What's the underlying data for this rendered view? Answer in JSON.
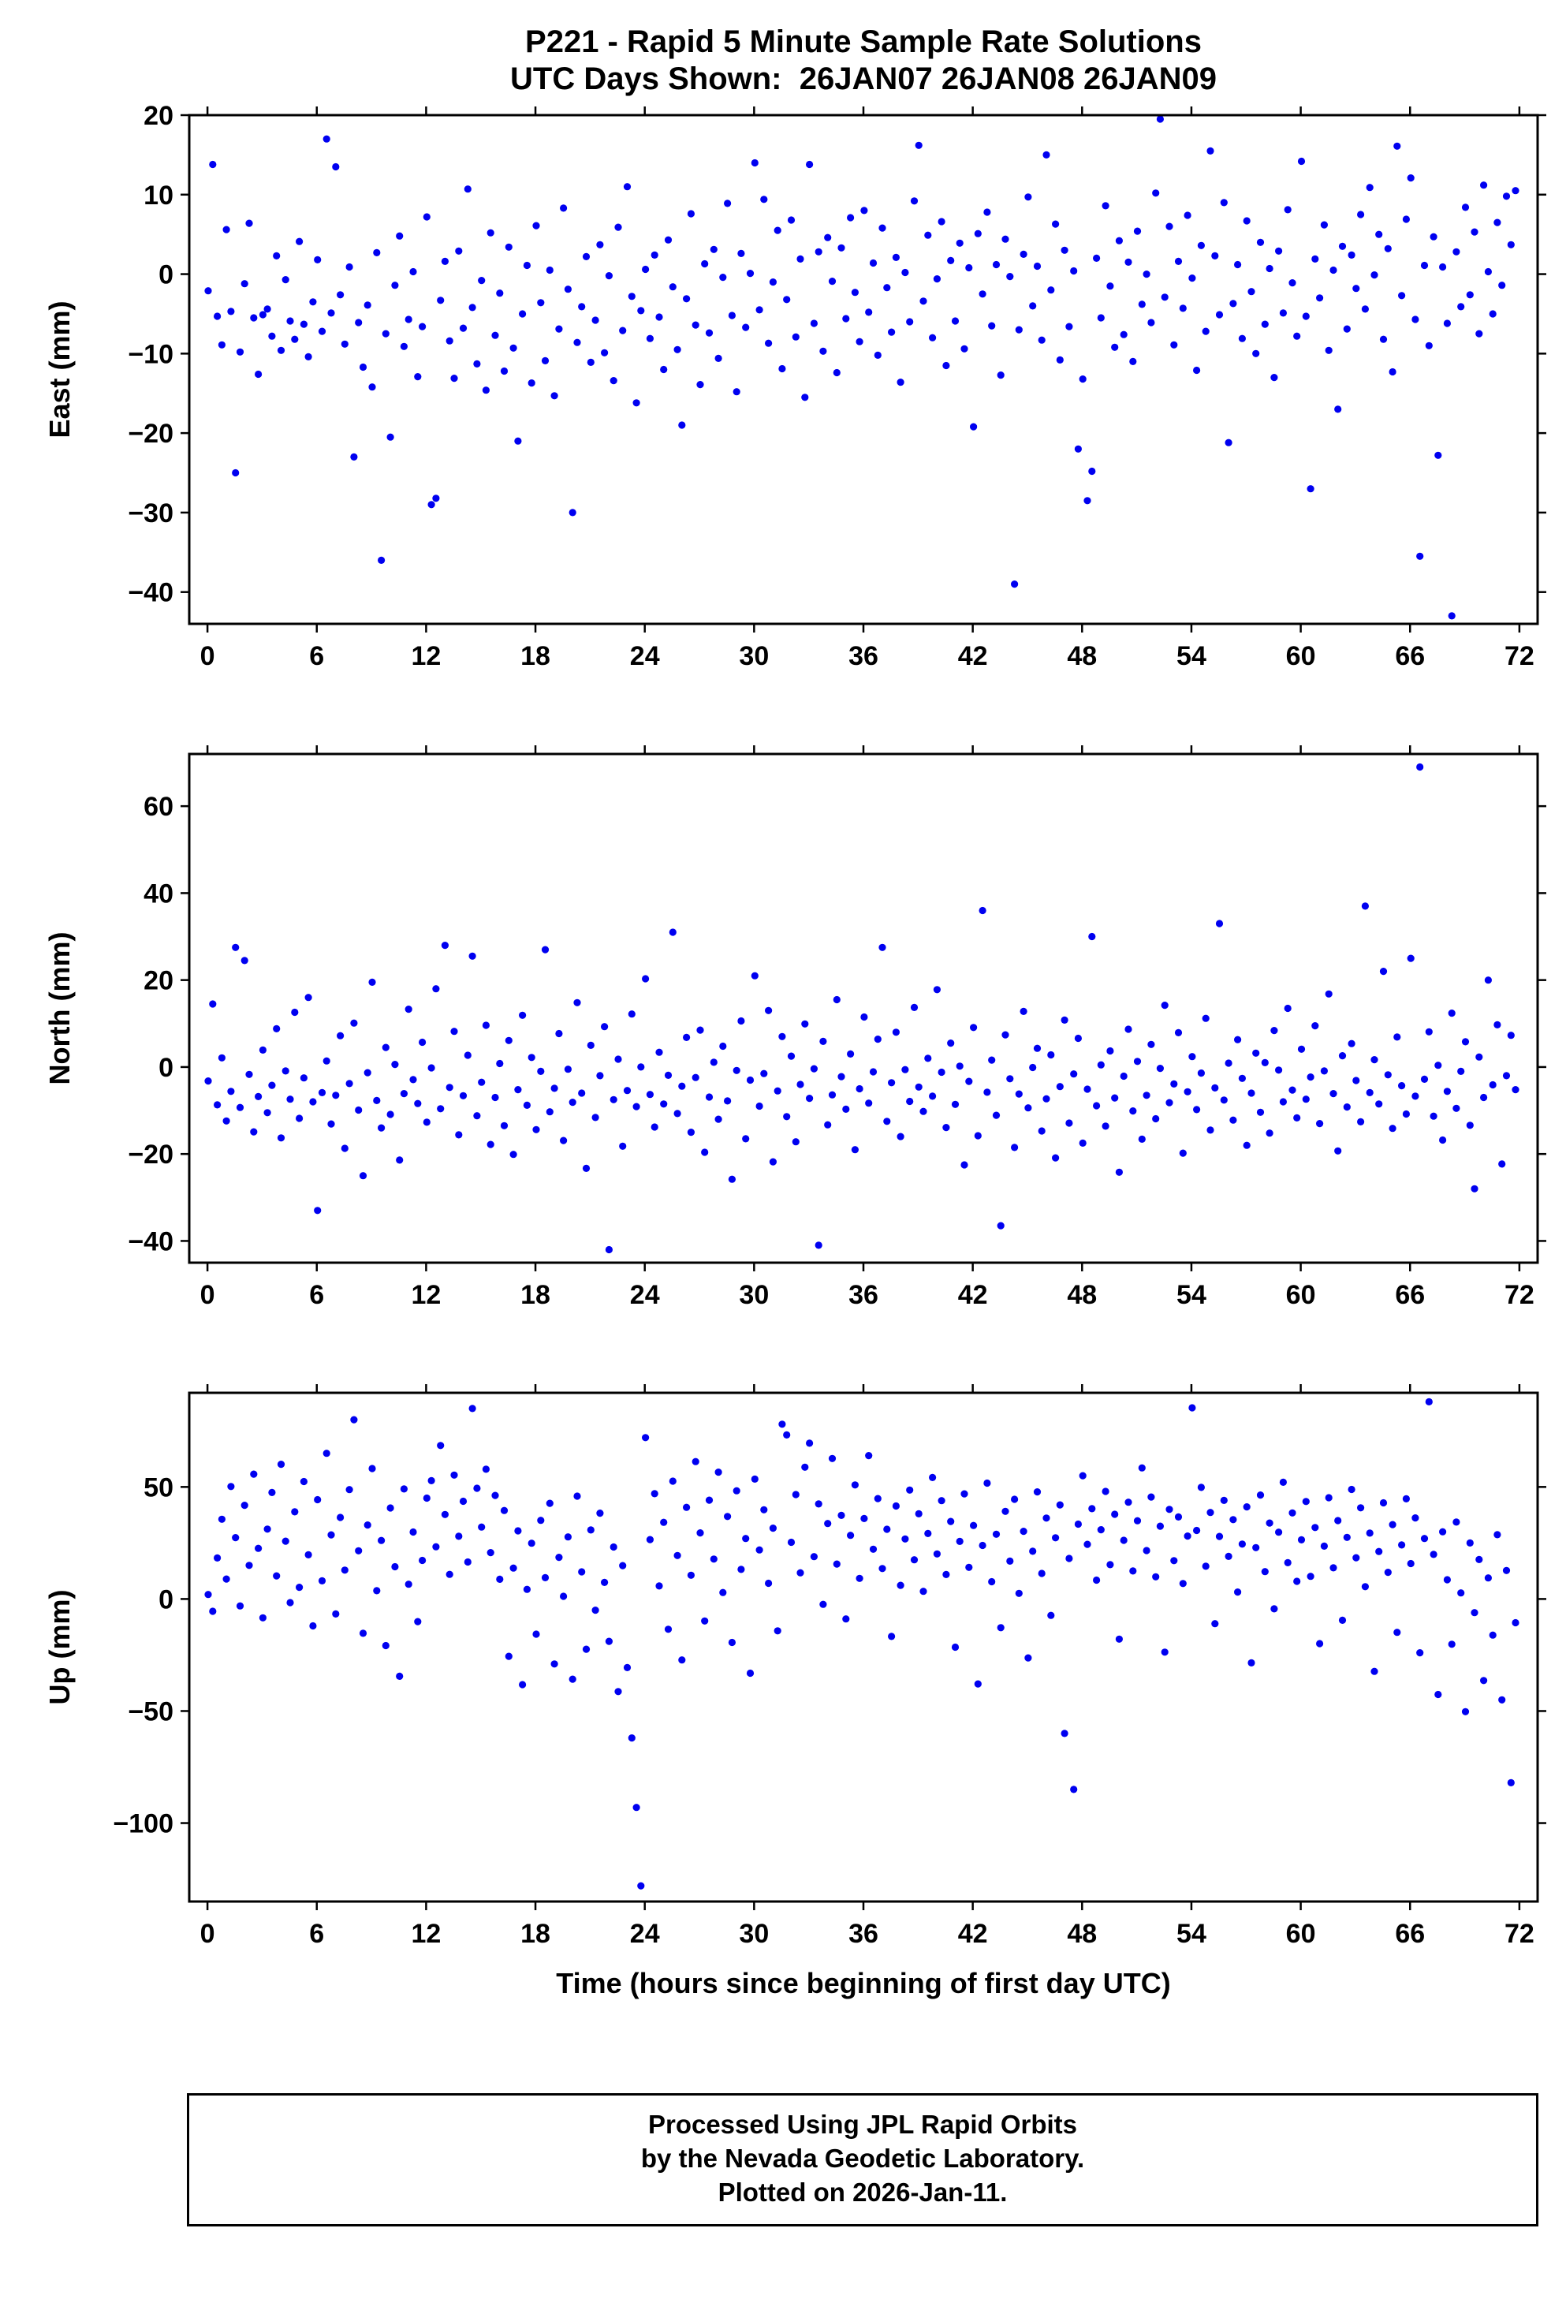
{
  "title": {
    "line1": "P221 - Rapid 5 Minute Sample Rate Solutions",
    "line2": "UTC Days Shown:  26JAN07 26JAN08 26JAN09"
  },
  "footer": {
    "line1": "Processed Using JPL Rapid Orbits",
    "line2": "by the Nevada Geodetic Laboratory.",
    "line3": "Plotted on 2026-Jan-11."
  },
  "colors": {
    "point": "#0000f0",
    "axis": "#000000",
    "background": "#ffffff"
  },
  "chart_data": [
    {
      "type": "scatter",
      "series_name": "East",
      "ylabel": "East (mm)",
      "xlim": [
        -1,
        73
      ],
      "ylim": [
        -44,
        20
      ],
      "xticks": [
        0,
        6,
        12,
        18,
        24,
        30,
        36,
        42,
        48,
        54,
        60,
        66,
        72
      ],
      "yticks": [
        -40,
        -30,
        -20,
        -10,
        0,
        10,
        20
      ],
      "x_start": 0.04,
      "x_step": 0.25,
      "n": 288,
      "y": [
        -2.1,
        13.8,
        -5.3,
        -8.9,
        5.6,
        -4.7,
        -25,
        -9.8,
        -1.2,
        6.4,
        -5.5,
        -12.6,
        -5.1,
        -4.4,
        -7.8,
        2.3,
        -9.6,
        -0.7,
        -5.9,
        -8.2,
        4.1,
        -6.3,
        -10.4,
        -3.5,
        1.8,
        -7.2,
        17,
        -4.9,
        13.5,
        -2.6,
        -8.8,
        0.9,
        -23,
        -6.1,
        -11.7,
        -3.9,
        -14.2,
        2.7,
        -36,
        -7.5,
        -20.5,
        -1.4,
        4.8,
        -9.1,
        -5.7,
        0.3,
        -12.9,
        -6.6,
        7.2,
        -29,
        -28.2,
        -3.3,
        1.6,
        -8.4,
        -13.1,
        2.9,
        -6.8,
        10.7,
        -4.2,
        -11.3,
        -0.8,
        -14.6,
        5.2,
        -7.7,
        -2.4,
        -12.2,
        3.4,
        -9.3,
        -21,
        -5,
        1.1,
        -13.7,
        6.1,
        -3.6,
        -10.9,
        0.5,
        -15.3,
        -6.9,
        8.3,
        -1.9,
        -30,
        -8.6,
        -4.1,
        2.2,
        -11.1,
        -5.8,
        3.7,
        -9.9,
        -0.2,
        -13.4,
        5.9,
        -7.1,
        11,
        -2.8,
        -16.2,
        -4.6,
        0.6,
        -8.1,
        2.4,
        -5.4,
        -12,
        4.3,
        -1.6,
        -9.5,
        -19,
        -3.1,
        7.6,
        -6.4,
        -13.9,
        1.3,
        -7.4,
        3.1,
        -10.6,
        -0.4,
        8.9,
        -5.2,
        -14.8,
        2.6,
        -6.7,
        0.1,
        14,
        -4.5,
        9.4,
        -8.7,
        -1,
        5.5,
        -11.9,
        -3.2,
        6.8,
        -7.9,
        1.9,
        -15.5,
        13.8,
        -6.2,
        2.8,
        -9.7,
        4.6,
        -0.9,
        -12.4,
        3.3,
        -5.6,
        7.1,
        -2.3,
        -8.5,
        8,
        -4.8,
        1.4,
        -10.2,
        5.8,
        -1.7,
        -7.3,
        2.1,
        -13.6,
        0.2,
        -6,
        9.2,
        16.2,
        -3.4,
        4.9,
        -8,
        -0.6,
        6.6,
        -11.5,
        1.7,
        -5.9,
        3.9,
        -9.4,
        0.8,
        -19.2,
        5.1,
        -2.5,
        7.8,
        -6.5,
        1.2,
        -12.7,
        4.4,
        -0.3,
        -39,
        -7,
        2.5,
        9.7,
        -4,
        1,
        -8.3,
        15,
        -2,
        6.3,
        -10.8,
        3,
        -6.6,
        0.4,
        -22,
        -13.2,
        -28.5,
        -24.8,
        2,
        -5.5,
        8.6,
        -1.5,
        -9.2,
        4.2,
        -7.6,
        1.5,
        -11,
        5.4,
        -3.8,
        0,
        -6.1,
        10.2,
        19.5,
        -2.9,
        6,
        -8.9,
        1.6,
        -4.3,
        7.4,
        -0.5,
        -12.1,
        3.6,
        -7.2,
        15.5,
        2.3,
        -5.1,
        9,
        -21.2,
        -3.7,
        1.2,
        -8.1,
        6.7,
        -2.2,
        -10,
        4,
        -6.3,
        0.7,
        -13,
        2.9,
        -4.9,
        8.1,
        -1.1,
        -7.8,
        14.2,
        -5.3,
        -27,
        1.9,
        -3,
        6.2,
        -9.6,
        0.5,
        -17,
        3.5,
        -6.9,
        2.4,
        -1.8,
        7.5,
        -4.4,
        10.9,
        -0.1,
        5,
        -8.2,
        3.2,
        -12.3,
        16.1,
        -2.7,
        6.9,
        12.1,
        -5.7,
        -35.5,
        1.1,
        -9,
        4.7,
        -22.8,
        0.9,
        -6.2,
        -43,
        2.8,
        -4.1,
        8.4,
        -2.6,
        5.3,
        -7.5,
        11.2,
        0.3,
        -5,
        6.5,
        -1.4,
        9.8,
        3.7,
        10.5
      ]
    },
    {
      "type": "scatter",
      "series_name": "North",
      "ylabel": "North (mm)",
      "xlim": [
        -1,
        73
      ],
      "ylim": [
        -45,
        72
      ],
      "xticks": [
        0,
        6,
        12,
        18,
        24,
        30,
        36,
        42,
        48,
        54,
        60,
        66,
        72
      ],
      "yticks": [
        -40,
        -20,
        0,
        20,
        40,
        60
      ],
      "x_start": 0.04,
      "x_step": 0.25,
      "n": 288,
      "y": [
        -3.2,
        14.5,
        -8.7,
        2.1,
        -12.4,
        -5.6,
        27.5,
        -9.3,
        24.5,
        -1.7,
        -14.9,
        -6.8,
        3.9,
        -10.5,
        -4.2,
        8.8,
        -16.3,
        -0.9,
        -7.4,
        12.6,
        -11.8,
        -2.5,
        16,
        -8,
        -33,
        -5.9,
        1.4,
        -13.1,
        -6.5,
        7.2,
        -18.7,
        -3.8,
        10.1,
        -9.9,
        -25,
        -1.3,
        19.5,
        -7.7,
        -14,
        4.5,
        -10.9,
        0.6,
        -21.4,
        -6.1,
        13.3,
        -2.9,
        -8.4,
        5.7,
        -12.7,
        -0.2,
        18,
        -9.6,
        28,
        -4.7,
        8.2,
        -15.6,
        -6.6,
        2.7,
        25.5,
        -11.2,
        -3.5,
        9.6,
        -17.8,
        -7,
        0.8,
        -13.5,
        6.1,
        -20.1,
        -5.2,
        11.9,
        -8.8,
        2.2,
        -14.4,
        -1,
        27,
        -10.3,
        -4.9,
        7.7,
        -16.9,
        -0.5,
        -8.1,
        14.8,
        -6,
        -23.3,
        5,
        -11.6,
        -2,
        9.3,
        -42,
        -7.5,
        1.8,
        -18.2,
        -5.4,
        12.2,
        -9.1,
        0,
        20.3,
        -6.3,
        -13.8,
        3.4,
        -8.5,
        -1.9,
        31,
        -10.7,
        -4.4,
        6.8,
        -15,
        -2.4,
        8.5,
        -19.6,
        -6.9,
        1.1,
        -12,
        4.8,
        -7.8,
        -25.8,
        -0.8,
        10.6,
        -16.5,
        -3,
        21,
        -9,
        -1.5,
        13,
        -21.8,
        -5.5,
        7,
        -11.4,
        2.5,
        -17.2,
        -4,
        9.9,
        -7.2,
        -0.4,
        -41,
        5.9,
        -13.3,
        -6.4,
        15.5,
        -2.2,
        -9.7,
        3,
        -19,
        -5,
        11.5,
        -8.3,
        -1.1,
        6.4,
        27.5,
        -12.5,
        -3.6,
        8,
        -16,
        -0.6,
        -7.9,
        13.7,
        -4.6,
        -10.2,
        2,
        -6.7,
        17.8,
        -1.2,
        -13.9,
        5.5,
        -8.6,
        0.2,
        -22.5,
        -3.3,
        9.1,
        -15.8,
        36,
        -5.8,
        1.6,
        -11.1,
        -36.5,
        7.4,
        -2.7,
        -18.5,
        -6.2,
        12.8,
        -9.4,
        -0.1,
        4.3,
        -14.7,
        -7.3,
        2.8,
        -20.9,
        -4.5,
        10.8,
        -12.9,
        -1.6,
        6.6,
        -17.5,
        -5.1,
        30,
        -8.9,
        0.5,
        -13.6,
        3.7,
        -7.1,
        -24.2,
        -2.1,
        8.7,
        -10.1,
        1.3,
        -16.6,
        -6.5,
        5.2,
        -11.9,
        -0.3,
        14.2,
        -8.2,
        -3.9,
        7.9,
        -19.8,
        -5.7,
        2.4,
        -9.8,
        -1.4,
        11.2,
        -14.5,
        -4.8,
        33,
        -7.6,
        0.9,
        -12.2,
        6.3,
        -2.6,
        -18,
        -6,
        3.2,
        -10.4,
        1,
        -15.2,
        8.4,
        -0.7,
        -8,
        13.5,
        -5.3,
        -11.7,
        4.1,
        -7.4,
        -2.3,
        9.5,
        -13,
        -0.9,
        16.8,
        -6.1,
        -19.3,
        2.6,
        -9.2,
        5.4,
        -3.1,
        -12.6,
        37,
        -5.9,
        1.7,
        -8.5,
        22,
        -1.8,
        -14.1,
        6.9,
        -4.3,
        -10.8,
        25,
        -6.7,
        69,
        -2.8,
        8.1,
        -11.3,
        0.4,
        -16.8,
        -5.6,
        12.4,
        -9.5,
        -1,
        5.8,
        -13.4,
        -28,
        2.3,
        -7,
        20,
        -4.1,
        9.7,
        -22.3,
        -2,
        7.3,
        -5.2
      ]
    },
    {
      "type": "scatter",
      "series_name": "Up",
      "ylabel": "Up (mm)",
      "xlabel": "Time (hours since beginning of first day UTC)",
      "xlim": [
        -1,
        73
      ],
      "ylim": [
        -135,
        92
      ],
      "xticks": [
        0,
        6,
        12,
        18,
        24,
        30,
        36,
        42,
        48,
        54,
        60,
        66,
        72
      ],
      "yticks": [
        -100,
        -50,
        0,
        50
      ],
      "x_start": 0.04,
      "x_step": 0.25,
      "n": 288,
      "y": [
        2,
        -5.5,
        18.3,
        35.6,
        8.9,
        50.2,
        27.4,
        -3.1,
        41.8,
        15,
        55.7,
        22.6,
        -8.4,
        31.2,
        47.5,
        10.3,
        60.1,
        25.8,
        -1.6,
        38.9,
        5.2,
        52.4,
        19.7,
        -12,
        44.3,
        8.1,
        65,
        28.6,
        -6.7,
        36.4,
        12.9,
        48.8,
        80,
        21.5,
        -15.3,
        33,
        58.2,
        3.7,
        26.1,
        -20.8,
        40.6,
        14.4,
        -34.5,
        49.1,
        6.6,
        29.9,
        -10.1,
        17.2,
        45,
        52.8,
        23.3,
        68.5,
        37.7,
        11,
        55.3,
        28,
        43.6,
        16.5,
        85,
        49.4,
        32.1,
        57.9,
        20.7,
        46.2,
        8.8,
        39.5,
        -25.6,
        13.8,
        30.4,
        -38.2,
        4.3,
        24.9,
        -15.7,
        35.1,
        9.5,
        42.7,
        -29,
        18.6,
        1.2,
        27.7,
        -35.8,
        45.9,
        12.1,
        -22.4,
        30.8,
        -5,
        38.3,
        7.4,
        -18.9,
        23.2,
        -41.3,
        14.9,
        -30.6,
        -62,
        -93,
        -128,
        72,
        26.5,
        47,
        5.8,
        34.2,
        -13.5,
        52.6,
        19.4,
        -27.2,
        40.9,
        10.6,
        61.3,
        29.5,
        -9.8,
        44.1,
        17.8,
        56.6,
        2.9,
        36.8,
        -19.4,
        48.3,
        13.2,
        27,
        -33.1,
        53.5,
        21.9,
        39.8,
        7,
        31.6,
        -14.2,
        78,
        73.2,
        25.3,
        46.6,
        11.7,
        58.8,
        69.5,
        18.9,
        42.4,
        -2.4,
        33.7,
        62.7,
        15.6,
        37.3,
        -8.9,
        28.4,
        50.9,
        9.2,
        35.9,
        64,
        22.2,
        44.8,
        13.6,
        31.1,
        -16.7,
        41.5,
        6.1,
        26.8,
        48.6,
        17.5,
        38,
        3.4,
        29.2,
        54.2,
        20.1,
        43.9,
        10.9,
        34.6,
        -21.5,
        25.7,
        46.9,
        14.1,
        32.8,
        -37.9,
        23.9,
        51.7,
        7.7,
        28.9,
        -12.8,
        39.1,
        16.9,
        44.5,
        2.5,
        30.2,
        -26.3,
        21.3,
        47.8,
        11.4,
        36.1,
        -7.3,
        27.3,
        42,
        -60,
        18.1,
        -85,
        33.4,
        55,
        24.4,
        40.3,
        8.4,
        30.9,
        48,
        15.3,
        37.8,
        -17.9,
        26.2,
        43.2,
        12.5,
        34.9,
        58.5,
        21.6,
        45.5,
        9.9,
        32.5,
        -23.7,
        40,
        17.1,
        36.6,
        6.9,
        28.1,
        85.3,
        30.6,
        49.8,
        14.6,
        38.6,
        -11,
        27.9,
        44,
        19,
        35.4,
        3.1,
        24.5,
        41.1,
        -28.5,
        22.9,
        46.4,
        12.2,
        33.9,
        -4.4,
        29.8,
        52.1,
        16.2,
        38.4,
        7.9,
        26.4,
        43.5,
        10.1,
        31.9,
        -19.9,
        23.6,
        45.2,
        13.9,
        35,
        -9.5,
        27.5,
        48.9,
        18.4,
        40.7,
        5.5,
        29.4,
        -32.3,
        21.2,
        42.9,
        11.9,
        33.2,
        -14.9,
        24.1,
        44.7,
        15.8,
        36.2,
        -24,
        27,
        88,
        19.9,
        -42.6,
        30,
        8.6,
        -20.2,
        34.3,
        2.7,
        -50.3,
        25,
        -6.1,
        17.6,
        -36.4,
        9.4,
        -16.1,
        28.7,
        -45,
        12.7,
        -82,
        -10.6
      ]
    }
  ]
}
